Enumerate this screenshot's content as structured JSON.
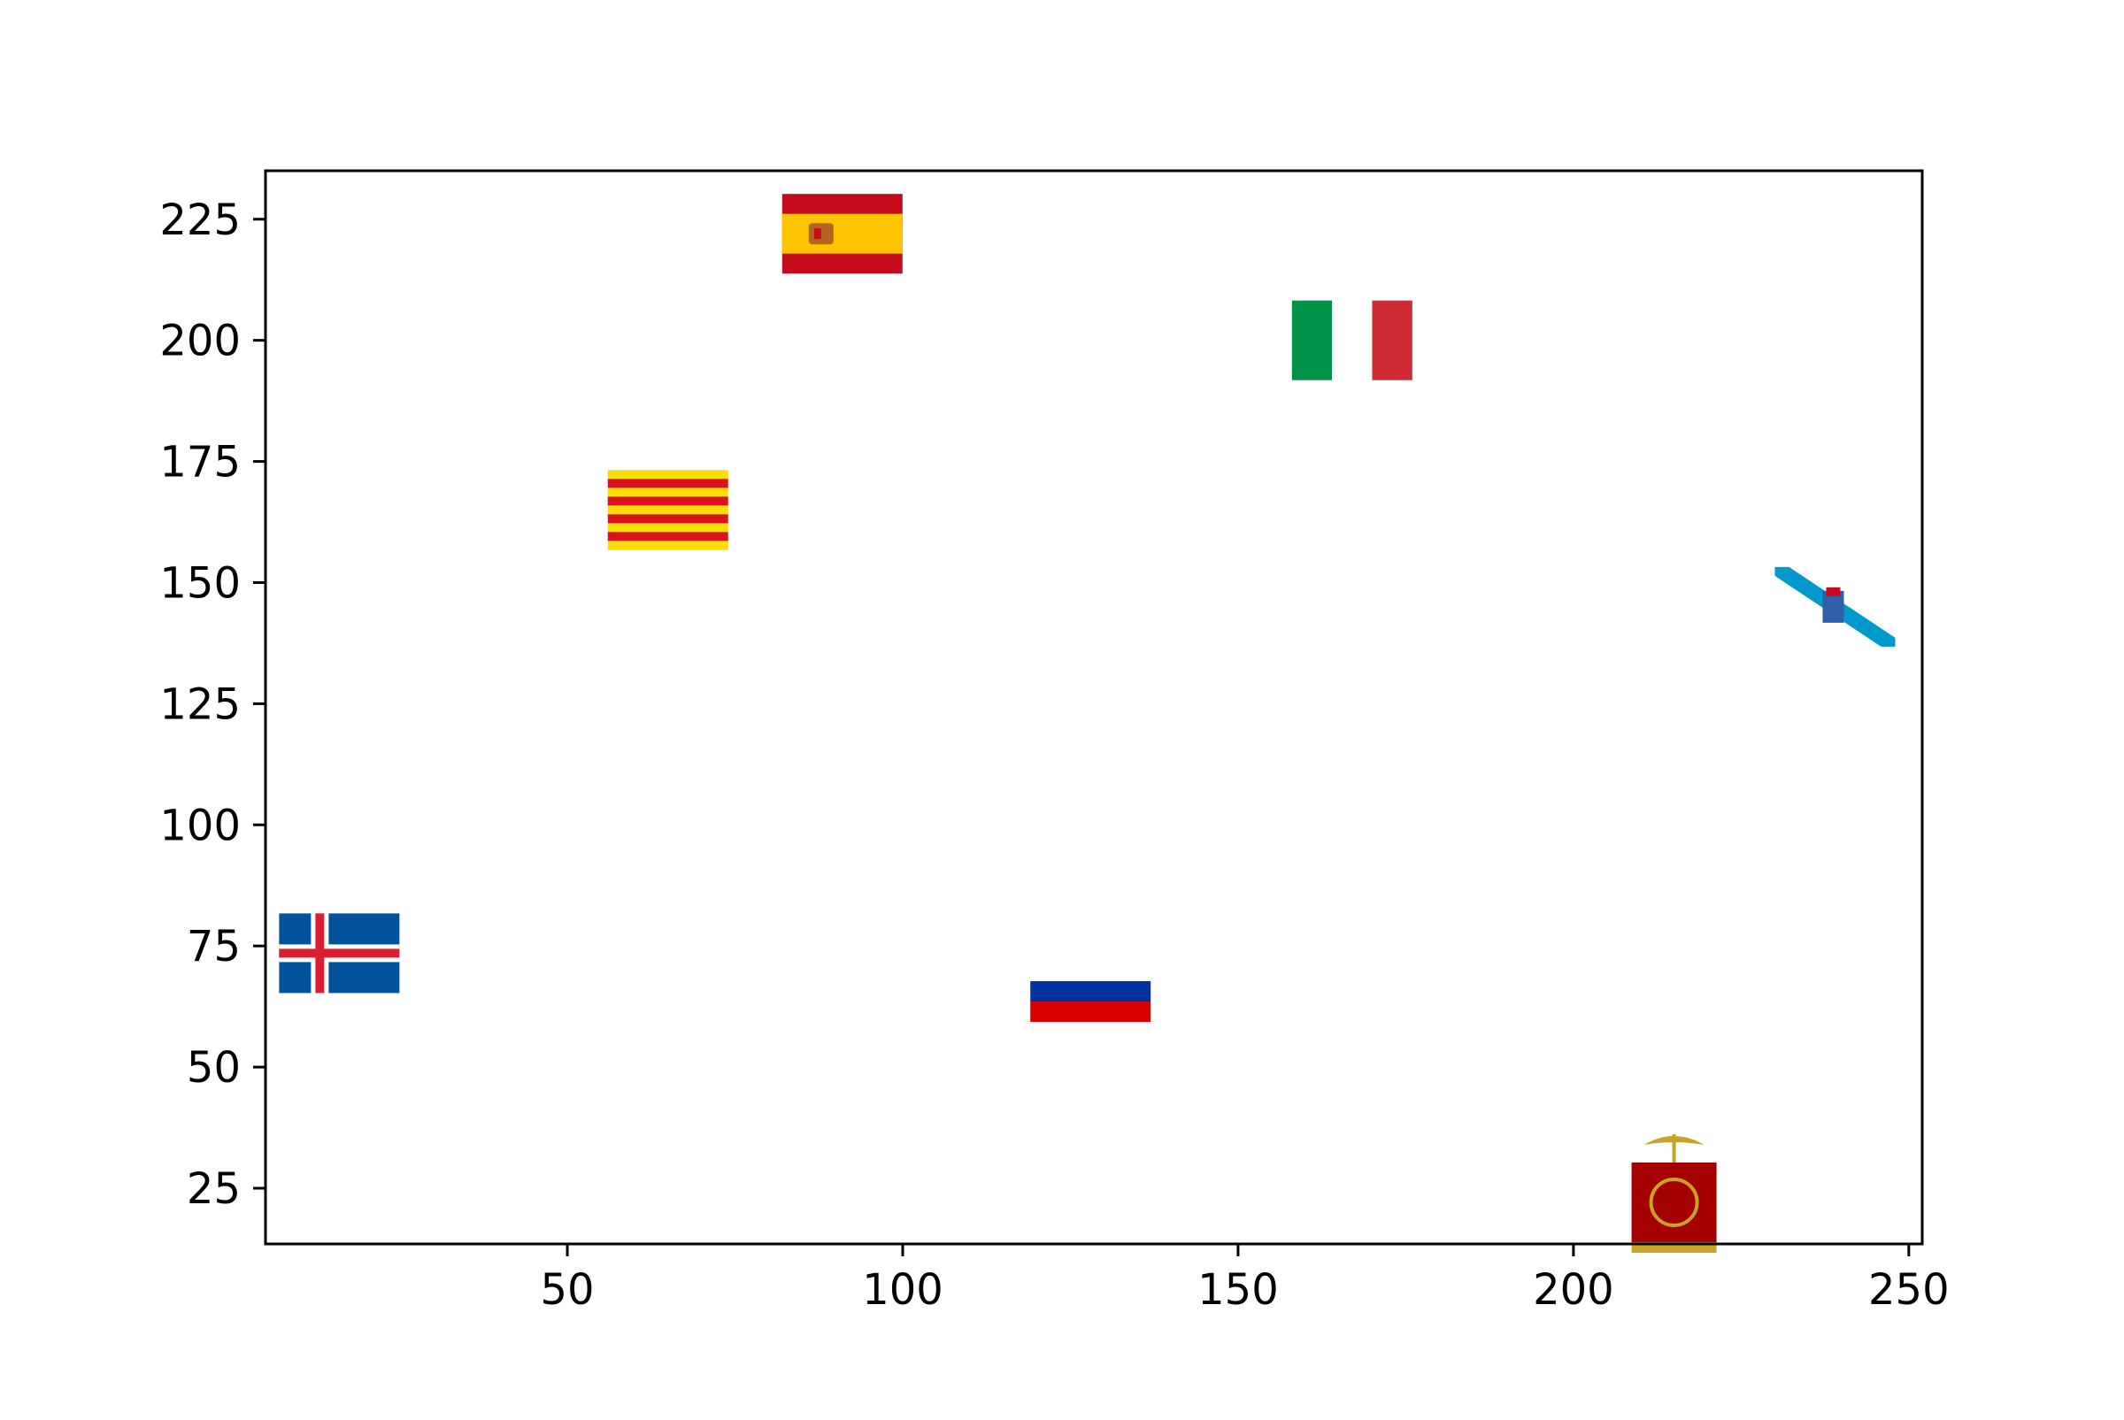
{
  "chart_data": {
    "type": "scatter",
    "title": "",
    "xlabel": "",
    "ylabel": "",
    "xlim": [
      5,
      252
    ],
    "ylim": [
      13.5,
      235
    ],
    "grid": false,
    "legend": "none",
    "x_ticks": [
      50,
      100,
      150,
      200,
      250
    ],
    "y_ticks": [
      25,
      50,
      75,
      100,
      125,
      150,
      175,
      200,
      225
    ],
    "x_tick_labels": [
      "50",
      "100",
      "150",
      "200",
      "250"
    ],
    "y_tick_labels": [
      "25",
      "50",
      "75",
      "100",
      "125",
      "150",
      "175",
      "200",
      "225"
    ],
    "points": [
      {
        "marker": "iceland-flag-icon",
        "x": 16,
        "y": 73.5
      },
      {
        "marker": "catalonia-flag-icon",
        "x": 65,
        "y": 165
      },
      {
        "marker": "spain-flag-icon",
        "x": 91,
        "y": 222
      },
      {
        "marker": "russia-flag-icon",
        "x": 128,
        "y": 67
      },
      {
        "marker": "italy-flag-icon",
        "x": 167,
        "y": 200
      },
      {
        "marker": "roman-standard-icon",
        "x": 215,
        "y": 23
      },
      {
        "marker": "galicia-flag-icon",
        "x": 239,
        "y": 145
      }
    ],
    "colors": {
      "axis": "#000000",
      "iceland_blue": "#02529C",
      "iceland_red": "#DC1E35",
      "spain_red": "#C60B1E",
      "spain_yellow": "#FFC400",
      "catalonia_yellow": "#FCDD09",
      "catalonia_red": "#DA121A",
      "russia_blue": "#0033A0",
      "russia_red": "#DA0000",
      "italy_green": "#009246",
      "italy_red": "#CE2B37",
      "roman_red": "#A50000",
      "roman_gold": "#C9A227",
      "galicia_blue": "#0099CC"
    }
  }
}
